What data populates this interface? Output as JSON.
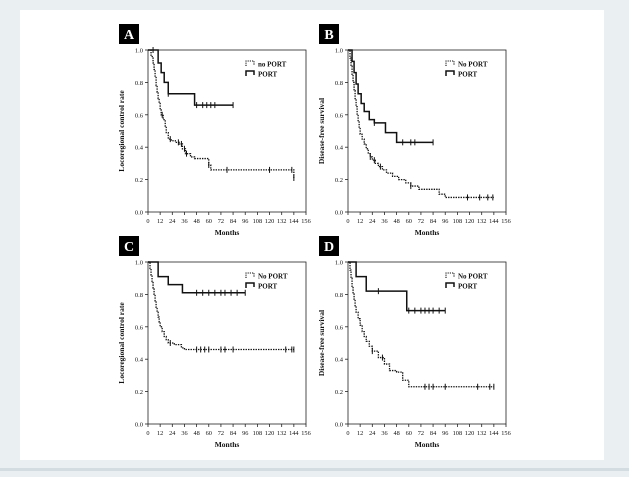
{
  "figure": {
    "chart_data": [
      {
        "id": "A",
        "type": "line",
        "panel_label": "A",
        "xlabel": "Months",
        "ylabel": "Locoregional control rate",
        "xlim": [
          0,
          156
        ],
        "ylim": [
          0.0,
          1.0
        ],
        "xticks": [
          0,
          12,
          24,
          36,
          48,
          60,
          72,
          84,
          96,
          108,
          120,
          132,
          144,
          156
        ],
        "yticks": [
          0.0,
          0.2,
          0.4,
          0.6,
          0.8,
          1.0
        ],
        "xtick_labels": [
          "0",
          "12",
          "24",
          "36",
          "48",
          "60",
          "72",
          "84",
          "96",
          "108",
          "120",
          "132",
          "144",
          "156"
        ],
        "ytick_labels": [
          "0.0",
          "0.2",
          "0.4",
          "0.6",
          "0.8",
          "1.0"
        ],
        "legend": {
          "placement": "top-right",
          "entries": [
            "no PORT",
            "PORT"
          ]
        },
        "series": [
          {
            "name": "no PORT",
            "style": "dotted",
            "x": [
              0,
              3,
              5,
              6,
              7,
              8,
              9,
              10,
              11,
              12,
              13,
              15,
              17,
              18,
              20,
              23,
              27,
              31,
              34,
              37,
              42,
              46,
              60,
              62,
              144
            ],
            "y": [
              1.0,
              0.96,
              0.92,
              0.88,
              0.83,
              0.78,
              0.74,
              0.7,
              0.67,
              0.63,
              0.6,
              0.57,
              0.53,
              0.49,
              0.45,
              0.44,
              0.43,
              0.42,
              0.39,
              0.36,
              0.34,
              0.33,
              0.29,
              0.26,
              0.21
            ],
            "censors_x": [
              14,
              22,
              30,
              33,
              36,
              38,
              60,
              78,
              120,
              142,
              144
            ]
          },
          {
            "name": "PORT",
            "style": "solid",
            "x": [
              0,
              10,
              13,
              16,
              20,
              46,
              84
            ],
            "y": [
              1.0,
              0.92,
              0.86,
              0.8,
              0.73,
              0.66,
              0.66
            ],
            "censors_x": [
              5,
              20,
              48,
              54,
              58,
              62,
              66,
              84
            ]
          }
        ]
      },
      {
        "id": "B",
        "type": "line",
        "panel_label": "B",
        "xlabel": "Months",
        "ylabel": "Disease-free survival",
        "xlim": [
          0,
          156
        ],
        "ylim": [
          0.0,
          1.0
        ],
        "xticks": [
          0,
          12,
          24,
          36,
          48,
          60,
          72,
          84,
          96,
          108,
          120,
          132,
          144,
          156
        ],
        "yticks": [
          0.0,
          0.2,
          0.4,
          0.6,
          0.8,
          1.0
        ],
        "xtick_labels": [
          "0",
          "12",
          "24",
          "36",
          "48",
          "60",
          "72",
          "84",
          "96",
          "108",
          "120",
          "132",
          "144",
          "156"
        ],
        "ytick_labels": [
          "0.0",
          "0.2",
          "0.4",
          "0.6",
          "0.8",
          "1.0"
        ],
        "legend": {
          "placement": "top-right",
          "entries": [
            "No PORT",
            "PORT"
          ]
        },
        "series": [
          {
            "name": "No PORT",
            "style": "dotted",
            "x": [
              0,
              2,
              3,
              4,
              5,
              6,
              7,
              8,
              9,
              10,
              11,
              12,
              14,
              16,
              18,
              20,
              22,
              24,
              27,
              30,
              34,
              38,
              44,
              50,
              57,
              62,
              70,
              90,
              96,
              144
            ],
            "y": [
              1.0,
              0.95,
              0.9,
              0.85,
              0.8,
              0.75,
              0.7,
              0.65,
              0.6,
              0.56,
              0.52,
              0.48,
              0.45,
              0.42,
              0.39,
              0.36,
              0.34,
              0.32,
              0.3,
              0.28,
              0.26,
              0.24,
              0.22,
              0.2,
              0.18,
              0.16,
              0.14,
              0.11,
              0.09,
              0.09
            ],
            "censors_x": [
              22,
              26,
              32,
              62,
              118,
              130,
              138,
              143
            ]
          },
          {
            "name": "PORT",
            "style": "solid",
            "x": [
              0,
              4,
              6,
              8,
              10,
              13,
              16,
              21,
              26,
              37,
              48,
              84
            ],
            "y": [
              1.0,
              0.93,
              0.86,
              0.79,
              0.73,
              0.67,
              0.62,
              0.57,
              0.55,
              0.49,
              0.43,
              0.43
            ],
            "censors_x": [
              26,
              54,
              62,
              66,
              84
            ]
          }
        ]
      },
      {
        "id": "C",
        "type": "line",
        "panel_label": "C",
        "xlabel": "Months",
        "ylabel": "Locoregional control rate",
        "xlim": [
          0,
          156
        ],
        "ylim": [
          0.0,
          1.0
        ],
        "xticks": [
          0,
          12,
          24,
          36,
          48,
          60,
          72,
          84,
          96,
          108,
          120,
          132,
          144,
          156
        ],
        "yticks": [
          0.0,
          0.2,
          0.4,
          0.6,
          0.8,
          1.0
        ],
        "xtick_labels": [
          "0",
          "12",
          "24",
          "36",
          "48",
          "60",
          "72",
          "84",
          "96",
          "108",
          "120",
          "132",
          "144",
          "156"
        ],
        "ytick_labels": [
          "0.0",
          "0.2",
          "0.4",
          "0.6",
          "0.8",
          "1.0"
        ],
        "legend": {
          "placement": "top-right",
          "entries": [
            "No PORT",
            "PORT"
          ]
        },
        "series": [
          {
            "name": "No PORT",
            "style": "dotted",
            "x": [
              0,
              2,
              3,
              4,
              5,
              6,
              7,
              8,
              9,
              10,
              11,
              12,
              14,
              16,
              18,
              20,
              26,
              33,
              36,
              144
            ],
            "y": [
              1.0,
              0.96,
              0.92,
              0.88,
              0.84,
              0.8,
              0.76,
              0.72,
              0.69,
              0.66,
              0.63,
              0.6,
              0.57,
              0.54,
              0.52,
              0.5,
              0.49,
              0.47,
              0.46,
              0.46
            ],
            "censors_x": [
              22,
              48,
              52,
              56,
              60,
              72,
              76,
              84,
              136,
              142,
              144
            ]
          },
          {
            "name": "PORT",
            "style": "solid",
            "x": [
              0,
              10,
              20,
              34,
              96
            ],
            "y": [
              1.0,
              0.91,
              0.86,
              0.81,
              0.81
            ],
            "censors_x": [
              48,
              54,
              60,
              66,
              72,
              76,
              82,
              88,
              96
            ]
          }
        ]
      },
      {
        "id": "D",
        "type": "line",
        "panel_label": "D",
        "xlabel": "Months",
        "ylabel": "Disease-free survival",
        "xlim": [
          0,
          156
        ],
        "ylim": [
          0.0,
          1.0
        ],
        "xticks": [
          0,
          12,
          24,
          36,
          48,
          60,
          72,
          84,
          96,
          108,
          120,
          132,
          144,
          156
        ],
        "yticks": [
          0.0,
          0.2,
          0.4,
          0.6,
          0.8,
          1.0
        ],
        "xtick_labels": [
          "0",
          "12",
          "24",
          "36",
          "48",
          "60",
          "72",
          "84",
          "96",
          "108",
          "120",
          "132",
          "144",
          "156"
        ],
        "ytick_labels": [
          "0.0",
          "0.2",
          "0.4",
          "0.6",
          "0.8",
          "1.0"
        ],
        "legend": {
          "placement": "top-right",
          "entries": [
            "No PORT",
            "PORT"
          ]
        },
        "series": [
          {
            "name": "No PORT",
            "style": "dotted",
            "x": [
              0,
              2,
              3,
              4,
              5,
              6,
              7,
              8,
              10,
              12,
              14,
              16,
              18,
              21,
              24,
              30,
              36,
              41,
              48,
              54,
              60,
              144
            ],
            "y": [
              1.0,
              0.95,
              0.9,
              0.85,
              0.81,
              0.77,
              0.73,
              0.69,
              0.65,
              0.61,
              0.57,
              0.54,
              0.51,
              0.48,
              0.45,
              0.41,
              0.37,
              0.33,
              0.32,
              0.27,
              0.23,
              0.23
            ],
            "censors_x": [
              24,
              34,
              76,
              80,
              84,
              96,
              128,
              140,
              144
            ]
          },
          {
            "name": "PORT",
            "style": "solid",
            "x": [
              0,
              8,
              18,
              58,
              96
            ],
            "y": [
              1.0,
              0.91,
              0.82,
              0.7,
              0.7
            ],
            "censors_x": [
              30,
              60,
              66,
              72,
              76,
              80,
              84,
              90,
              96
            ]
          }
        ]
      }
    ]
  }
}
